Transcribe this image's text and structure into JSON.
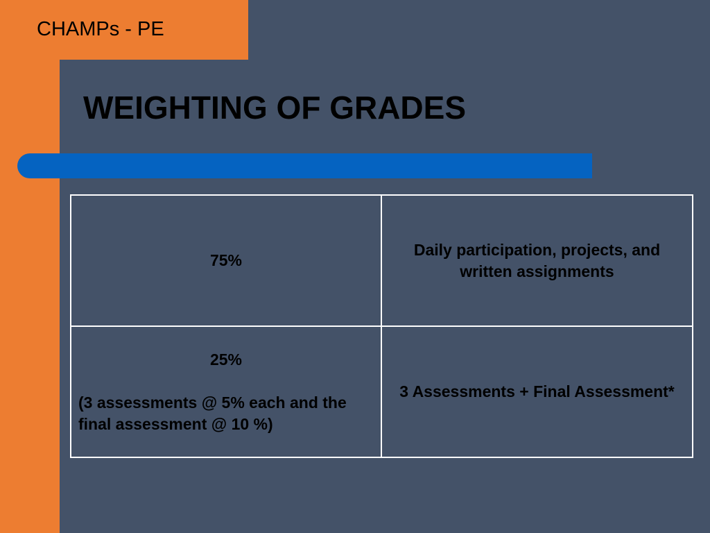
{
  "header": {
    "label": "CHAMPs - PE"
  },
  "slide": {
    "title": "WEIGHTING OF GRADES"
  },
  "table": {
    "rows": [
      {
        "weight": "75%",
        "description": "Daily participation, projects, and written assignments"
      },
      {
        "weight": "25%",
        "weight_note": "(3 assessments @ 5% each and the final assessment @ 10 %)",
        "description": "3  Assessments + Final Assessment*"
      }
    ]
  },
  "colors": {
    "background": "#445268",
    "accent_orange": "#ed7d31",
    "accent_blue": "#0563c1",
    "table_border": "#ffffff"
  }
}
